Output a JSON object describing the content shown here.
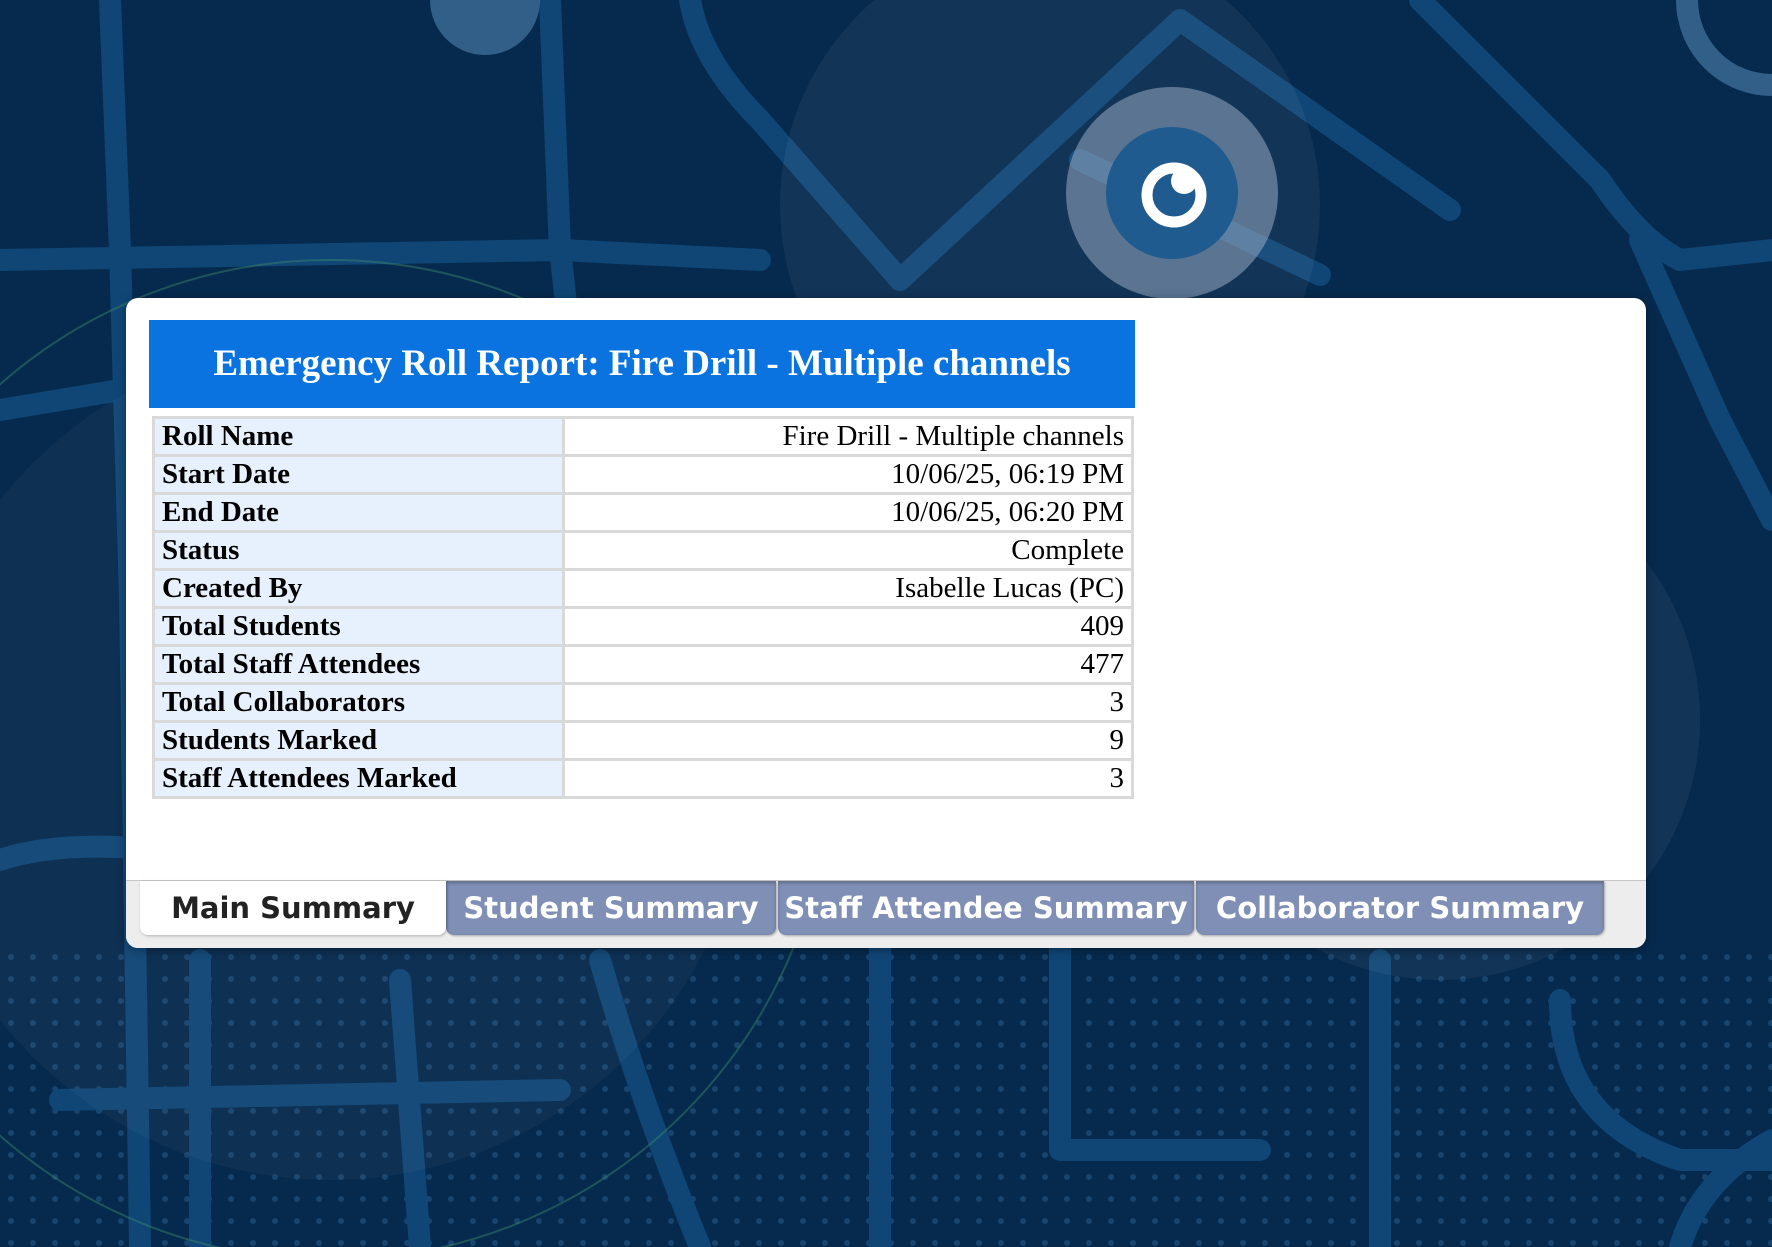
{
  "colors": {
    "background": "#062a4e",
    "title_bar": "#0a73e0",
    "label_cell": "#e6f1fd",
    "active_tab": "#ffffff",
    "inactive_tab": "#7f8fb5"
  },
  "logo": {
    "icon": "app-logo-icon"
  },
  "report": {
    "title": "Emergency Roll Report: Fire Drill - Multiple channels",
    "rows": [
      {
        "label": "Roll Name",
        "value": "Fire Drill - Multiple channels"
      },
      {
        "label": "Start Date",
        "value": "10/06/25, 06:19 PM"
      },
      {
        "label": "End Date",
        "value": "10/06/25, 06:20 PM"
      },
      {
        "label": "Status",
        "value": "Complete"
      },
      {
        "label": "Created By",
        "value": "Isabelle Lucas (PC)"
      },
      {
        "label": "Total Students",
        "value": "409"
      },
      {
        "label": "Total Staff Attendees",
        "value": "477"
      },
      {
        "label": "Total Collaborators",
        "value": "3"
      },
      {
        "label": "Students Marked",
        "value": "9"
      },
      {
        "label": "Staff Attendees Marked",
        "value": "3"
      }
    ]
  },
  "tabs": [
    {
      "label": "Main Summary",
      "active": true
    },
    {
      "label": "Student Summary",
      "active": false
    },
    {
      "label": "Staff Attendee Summary",
      "active": false
    },
    {
      "label": "Collaborator Summary",
      "active": false
    }
  ]
}
